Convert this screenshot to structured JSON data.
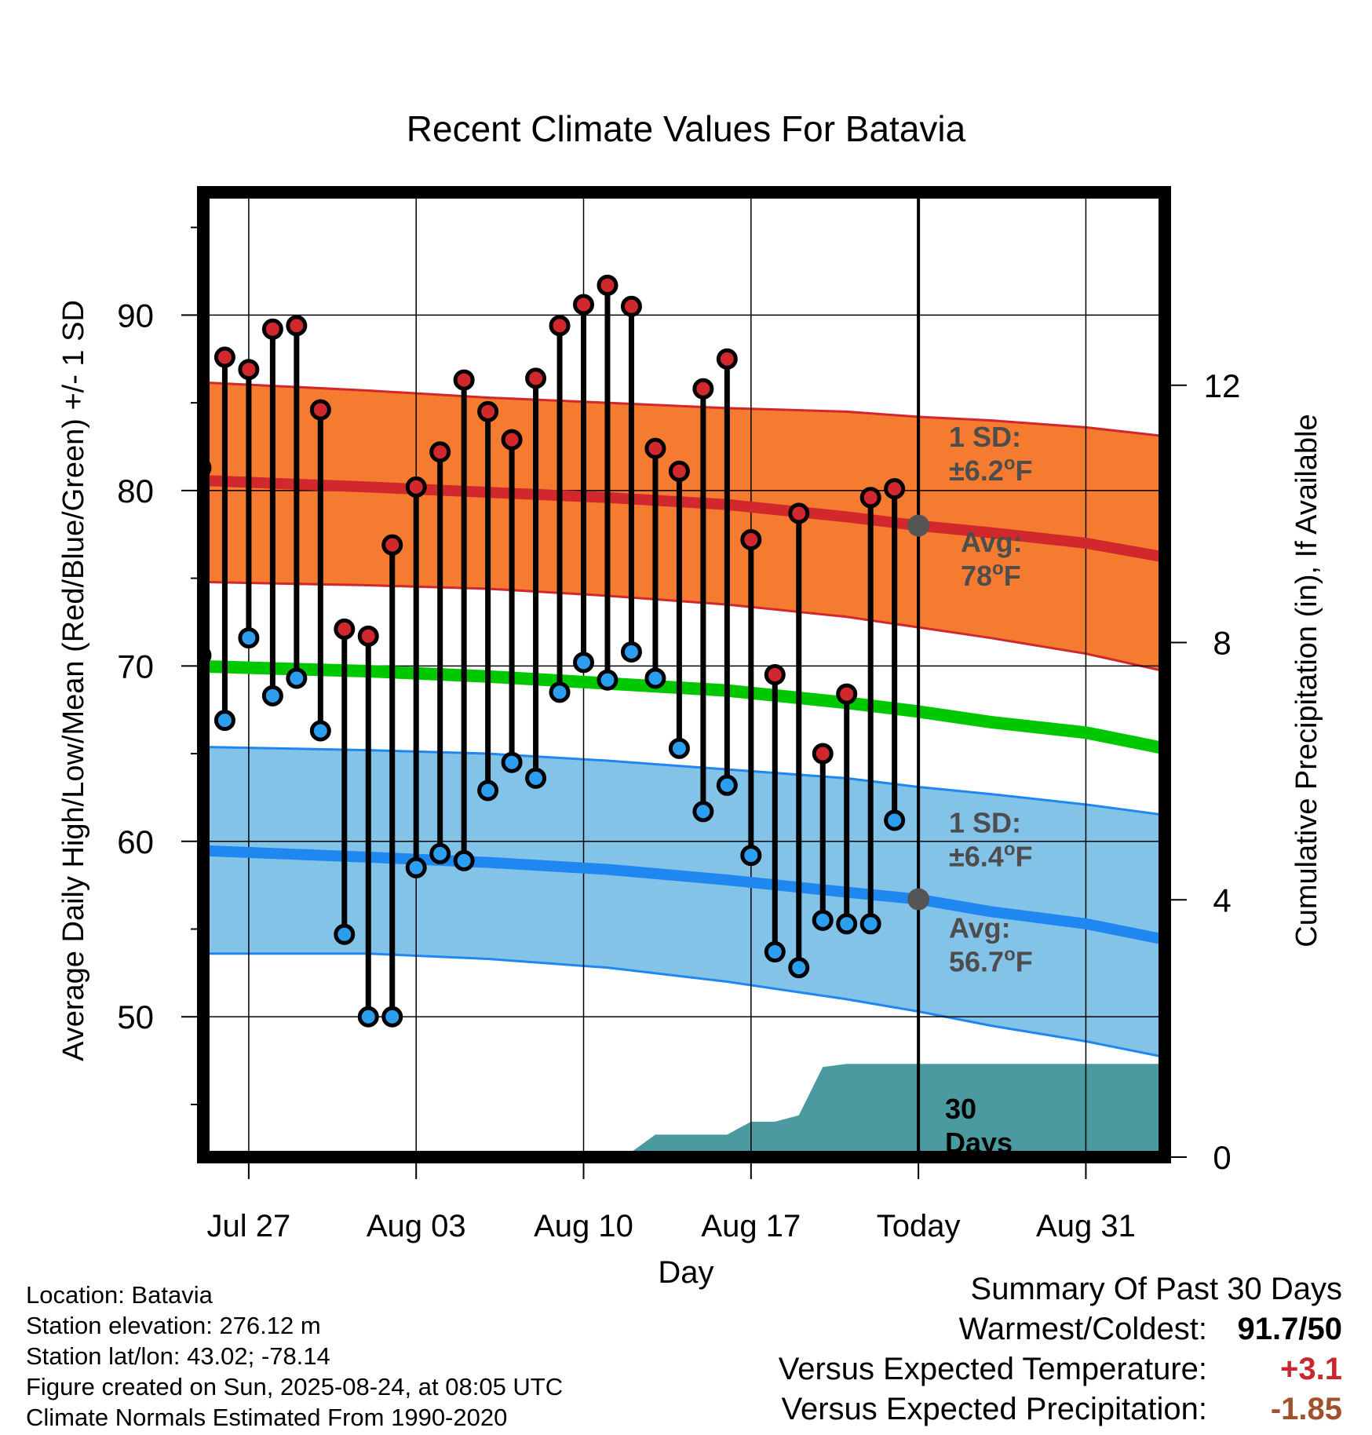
{
  "chart_data": {
    "type": "line",
    "title": "Recent Climate Values For Batavia",
    "xlabel": "Day",
    "ylabel": "Average Daily High/Low/Mean (Red/Blue/Green) +/- 1 SD",
    "y2label": "Cumulative Precipitation (in), If Available",
    "xlim": [
      -1.9,
      38.3
    ],
    "ylim": [
      42.0,
      97.0
    ],
    "y2lim": [
      0,
      15
    ],
    "yticks": [
      50,
      60,
      70,
      80,
      90
    ],
    "y2ticks": [
      0,
      4,
      8,
      12
    ],
    "xtick_positions": [
      0,
      7,
      14,
      21,
      28,
      35
    ],
    "xtick_labels": [
      "Jul 27",
      "Aug 03",
      "Aug 10",
      "Aug 17",
      "Today",
      "Aug 31"
    ],
    "grid": true,
    "today_line_x": 28,
    "x_days_from_jul27": [
      -2,
      -1,
      0,
      1,
      2,
      3,
      4,
      5,
      6,
      7,
      8,
      9,
      10,
      11,
      12,
      13,
      14,
      15,
      16,
      17,
      18,
      19,
      20,
      21,
      22,
      23,
      24,
      25,
      26,
      27
    ],
    "series": [
      {
        "name": "Daily High",
        "color": "#d0282d",
        "values": [
          81.3,
          87.6,
          86.9,
          89.2,
          89.4,
          84.6,
          72.1,
          71.7,
          76.9,
          80.2,
          82.2,
          86.3,
          84.5,
          82.9,
          86.4,
          89.4,
          90.6,
          91.7,
          90.5,
          82.4,
          81.1,
          85.8,
          87.5,
          77.2,
          69.5,
          78.7,
          65.0,
          68.4,
          79.6,
          80.1
        ]
      },
      {
        "name": "Daily Low",
        "color": "#2b9ef0",
        "values": [
          70.6,
          66.9,
          71.6,
          68.3,
          69.3,
          66.3,
          54.7,
          50.0,
          50.0,
          58.5,
          59.3,
          58.9,
          62.9,
          64.5,
          63.6,
          68.5,
          70.2,
          69.2,
          70.8,
          69.3,
          65.3,
          61.7,
          63.2,
          59.2,
          53.7,
          52.8,
          55.5,
          55.3,
          55.3,
          61.2
        ]
      },
      {
        "name": "Normal High",
        "color": "#d0282d",
        "x": [
          -2.5,
          5,
          10,
          15,
          20,
          25,
          28,
          31,
          35,
          38.3
        ],
        "values": [
          80.6,
          80.2,
          79.9,
          79.6,
          79.2,
          78.5,
          78.0,
          77.6,
          77.0,
          76.2
        ]
      },
      {
        "name": "Normal High +1 SD",
        "color": "#d0282d",
        "x": [
          -2.5,
          5,
          10,
          15,
          20,
          25,
          28,
          31,
          35,
          38.3
        ],
        "values": [
          86.2,
          85.7,
          85.3,
          85.0,
          84.7,
          84.5,
          84.2,
          84.0,
          83.6,
          83.1
        ]
      },
      {
        "name": "Normal High -1 SD",
        "color": "#d0282d",
        "x": [
          -2.5,
          5,
          10,
          15,
          20,
          25,
          28,
          31,
          35,
          38.3
        ],
        "values": [
          74.8,
          74.6,
          74.4,
          74.0,
          73.5,
          72.8,
          72.2,
          71.6,
          70.7,
          69.7
        ]
      },
      {
        "name": "Normal Mean",
        "color": "#00c800",
        "x": [
          -2.5,
          5,
          10,
          15,
          20,
          25,
          28,
          31,
          35,
          38.3
        ],
        "values": [
          70.0,
          69.7,
          69.4,
          69.0,
          68.6,
          67.9,
          67.4,
          66.8,
          66.2,
          65.3
        ]
      },
      {
        "name": "Normal Low",
        "color": "#1f87f0",
        "x": [
          -2.5,
          5,
          10,
          15,
          20,
          25,
          28,
          31,
          35,
          38.3
        ],
        "values": [
          59.5,
          59.1,
          58.8,
          58.4,
          57.8,
          57.1,
          56.7,
          56.0,
          55.3,
          54.4
        ]
      },
      {
        "name": "Normal Low +1 SD",
        "color": "#1f87f0",
        "x": [
          -2.5,
          5,
          10,
          15,
          20,
          25,
          28,
          31,
          35,
          38.3
        ],
        "values": [
          65.4,
          65.2,
          65.0,
          64.6,
          64.1,
          63.6,
          63.1,
          62.7,
          62.1,
          61.5
        ]
      },
      {
        "name": "Normal Low -1 SD",
        "color": "#1f87f0",
        "x": [
          -2.5,
          5,
          10,
          15,
          20,
          25,
          28,
          31,
          35,
          38.3
        ],
        "values": [
          53.6,
          53.6,
          53.3,
          52.8,
          52.0,
          51.0,
          50.3,
          49.5,
          48.6,
          47.7
        ]
      },
      {
        "name": "Cumulative Precipitation",
        "color": "#4a9aa0",
        "x": [
          -1.9,
          3,
          4,
          5,
          16,
          17,
          20,
          21,
          22,
          23,
          24,
          25,
          38.3
        ],
        "values": [
          0,
          0,
          0.08,
          0.08,
          0.08,
          0.35,
          0.35,
          0.55,
          0.55,
          0.65,
          1.4,
          1.45,
          1.45
        ]
      }
    ],
    "today_high_avg": 78,
    "today_low_avg": 56.7,
    "annotations": [
      {
        "text_line1": "1 SD:",
        "text_line2": "±6.2",
        "unit": "oF",
        "y": 82.5
      },
      {
        "text_line1": "Avg:",
        "text_line2": "78",
        "unit": "oF",
        "y": 76.5
      },
      {
        "text_line1": "1 SD:",
        "text_line2": "±6.4",
        "unit": "oF",
        "y": 60.5
      },
      {
        "text_line1": "Avg:",
        "text_line2": "56.7",
        "unit": "oF",
        "y": 54.5
      },
      {
        "text_line1": "30",
        "text_line2": "Days",
        "unit": "",
        "y": 44.2
      }
    ]
  },
  "info": {
    "location": "Location: Batavia",
    "elevation": "Station elevation: 276.12 m",
    "latlon": "Station lat/lon: 43.02; -78.14",
    "created": "Figure created on Sun, 2025-08-24, at 08:05 UTC",
    "normals": "Climate Normals Estimated From 1990-2020"
  },
  "summary": {
    "heading": "Summary Of Past 30 Days",
    "warm_cold_label": "Warmest/Coldest:",
    "warm_cold_value": "91.7/50",
    "temp_label": "Versus Expected Temperature:",
    "temp_value": "+3.1",
    "temp_color": "#c8282d",
    "precip_label": "Versus Expected Precipitation:",
    "precip_value": "-1.85",
    "precip_color": "#a0522d"
  }
}
